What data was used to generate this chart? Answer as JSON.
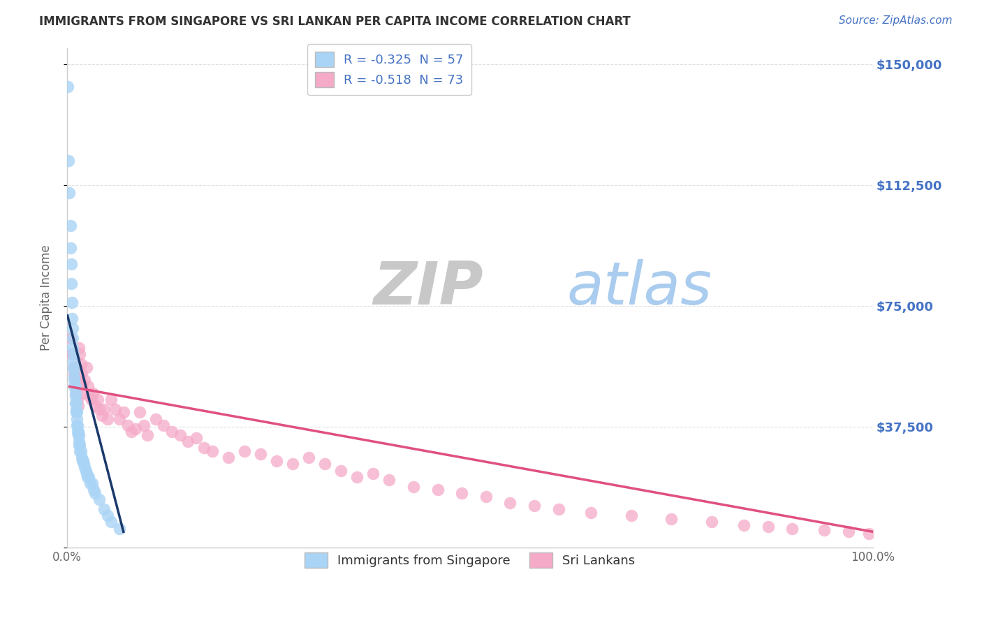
{
  "title": "IMMIGRANTS FROM SINGAPORE VS SRI LANKAN PER CAPITA INCOME CORRELATION CHART",
  "source": "Source: ZipAtlas.com",
  "ylabel": "Per Capita Income",
  "y_ticks": [
    0,
    37500,
    75000,
    112500,
    150000
  ],
  "y_tick_labels": [
    "",
    "$37,500",
    "$75,000",
    "$112,500",
    "$150,000"
  ],
  "watermark_zip": "ZIP",
  "watermark_atlas": "atlas",
  "legend_entries": [
    {
      "label": "R = -0.325  N = 57",
      "color": "#aad4f5"
    },
    {
      "label": "R = -0.518  N = 73",
      "color": "#f5aac8"
    }
  ],
  "legend_labels": [
    "Immigrants from Singapore",
    "Sri Lankans"
  ],
  "background_color": "#ffffff",
  "title_color": "#333333",
  "source_color": "#4472c4",
  "axis_color": "#cccccc",
  "grid_color": "#dddddd",
  "sg_scatter_color": "#aad4f5",
  "sl_scatter_color": "#f5aac8",
  "sg_line_color": "#1a3a6b",
  "sl_line_color": "#e05080",
  "watermark_zip_color": "#c8c8c8",
  "watermark_atlas_color": "#aaccee",
  "sg_points_x": [
    0.001,
    0.002,
    0.003,
    0.004,
    0.004,
    0.005,
    0.005,
    0.006,
    0.006,
    0.007,
    0.007,
    0.007,
    0.008,
    0.008,
    0.008,
    0.009,
    0.009,
    0.009,
    0.009,
    0.01,
    0.01,
    0.01,
    0.01,
    0.011,
    0.011,
    0.011,
    0.012,
    0.012,
    0.012,
    0.013,
    0.013,
    0.014,
    0.014,
    0.015,
    0.015,
    0.015,
    0.016,
    0.016,
    0.017,
    0.018,
    0.019,
    0.02,
    0.021,
    0.022,
    0.023,
    0.024,
    0.025,
    0.027,
    0.029,
    0.031,
    0.033,
    0.035,
    0.04,
    0.046,
    0.05,
    0.055,
    0.065
  ],
  "sg_points_y": [
    143000,
    120000,
    110000,
    100000,
    93000,
    88000,
    82000,
    76000,
    71000,
    68000,
    65000,
    62000,
    60000,
    58000,
    56000,
    55000,
    53000,
    52000,
    50000,
    50000,
    48000,
    47000,
    45000,
    45000,
    43000,
    42000,
    42000,
    40000,
    38000,
    38000,
    36000,
    36000,
    35000,
    35000,
    33000,
    32000,
    32000,
    30000,
    30000,
    28000,
    27000,
    27000,
    26000,
    25000,
    24000,
    23000,
    22000,
    22000,
    20000,
    20000,
    18000,
    17000,
    15000,
    12000,
    10000,
    8000,
    6000
  ],
  "sl_points_x": [
    0.004,
    0.006,
    0.008,
    0.009,
    0.01,
    0.011,
    0.012,
    0.013,
    0.014,
    0.015,
    0.016,
    0.017,
    0.018,
    0.019,
    0.02,
    0.022,
    0.024,
    0.026,
    0.028,
    0.03,
    0.032,
    0.035,
    0.038,
    0.04,
    0.043,
    0.046,
    0.05,
    0.055,
    0.06,
    0.065,
    0.07,
    0.075,
    0.08,
    0.085,
    0.09,
    0.095,
    0.1,
    0.11,
    0.12,
    0.13,
    0.14,
    0.15,
    0.16,
    0.17,
    0.18,
    0.2,
    0.22,
    0.24,
    0.26,
    0.28,
    0.3,
    0.32,
    0.34,
    0.36,
    0.38,
    0.4,
    0.43,
    0.46,
    0.49,
    0.52,
    0.55,
    0.58,
    0.61,
    0.65,
    0.7,
    0.75,
    0.8,
    0.84,
    0.87,
    0.9,
    0.94,
    0.97,
    0.995
  ],
  "sl_points_y": [
    65000,
    60000,
    56000,
    54000,
    52000,
    50000,
    48000,
    46000,
    44000,
    62000,
    60000,
    57000,
    54000,
    51000,
    48000,
    52000,
    56000,
    50000,
    47000,
    46000,
    48000,
    44000,
    46000,
    43000,
    41000,
    43000,
    40000,
    46000,
    43000,
    40000,
    42000,
    38000,
    36000,
    37000,
    42000,
    38000,
    35000,
    40000,
    38000,
    36000,
    35000,
    33000,
    34000,
    31000,
    30000,
    28000,
    30000,
    29000,
    27000,
    26000,
    28000,
    26000,
    24000,
    22000,
    23000,
    21000,
    19000,
    18000,
    17000,
    16000,
    14000,
    13000,
    12000,
    11000,
    10000,
    9000,
    8000,
    7000,
    6500,
    6000,
    5500,
    5000,
    4500
  ],
  "xlim": [
    0.0,
    1.0
  ],
  "ylim": [
    0,
    155000
  ],
  "sg_line_x": [
    0.0005,
    0.07
  ],
  "sg_line_y": [
    72000,
    5000
  ],
  "sl_line_x": [
    0.003,
    1.0
  ],
  "sl_line_y": [
    50000,
    5000
  ]
}
